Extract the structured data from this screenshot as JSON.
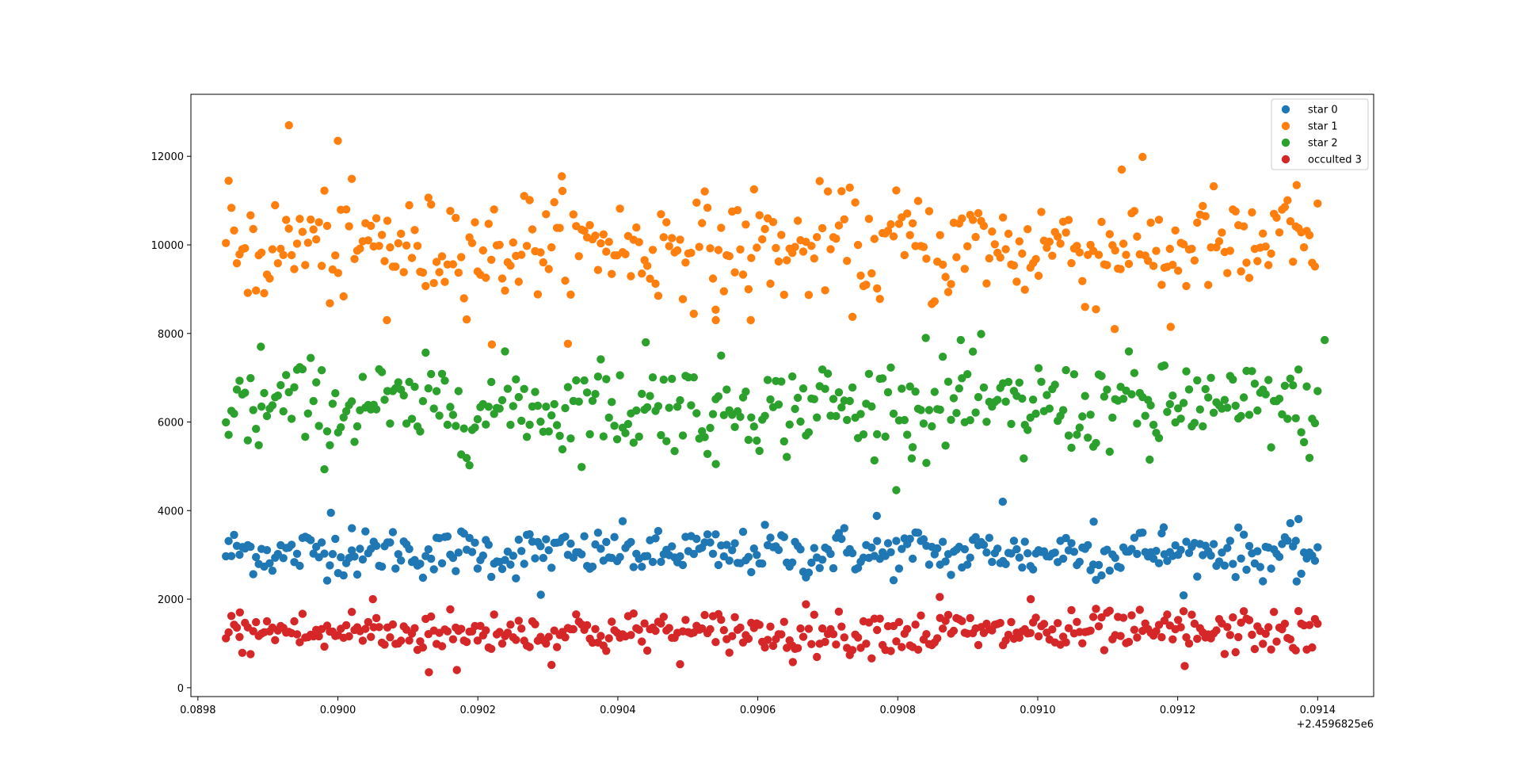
{
  "chart_data": {
    "type": "scatter",
    "x_range": [
      0.08984,
      0.0914
    ],
    "xlim": [
      0.08979,
      0.09148
    ],
    "ylim": [
      -200,
      13400
    ],
    "x_ticks": [
      0.0898,
      0.09,
      0.0902,
      0.0904,
      0.0906,
      0.0908,
      0.091,
      0.0912,
      0.0914
    ],
    "x_tick_labels": [
      "0.0898",
      "0.0900",
      "0.0902",
      "0.0904",
      "0.0906",
      "0.0908",
      "0.0910",
      "0.0912",
      "0.0914"
    ],
    "y_ticks": [
      0,
      2000,
      4000,
      6000,
      8000,
      10000,
      12000
    ],
    "y_tick_labels": [
      "0",
      "2000",
      "4000",
      "6000",
      "8000",
      "10000",
      "12000"
    ],
    "x_offset_label": "+2.4596825e6",
    "legend_position": "top-right",
    "n_points_per_series": 400,
    "series": [
      {
        "name": "star 0",
        "color": "#1f77b4",
        "mean": 3050,
        "spread": 260,
        "outliers": [
          [
            0.08999,
            3950
          ],
          [
            0.09002,
            3600
          ],
          [
            0.09029,
            2100
          ],
          [
            0.09077,
            3880
          ],
          [
            0.09095,
            4200
          ],
          [
            0.09108,
            3750
          ],
          [
            0.09137,
            2400
          ],
          [
            0.09118,
            3620
          ]
        ]
      },
      {
        "name": "star 1",
        "color": "#ff7f0e",
        "mean": 9950,
        "spread": 600,
        "outliers": [
          [
            0.08993,
            12700
          ],
          [
            0.09,
            12350
          ],
          [
            0.09007,
            8300
          ],
          [
            0.09022,
            7750
          ],
          [
            0.09032,
            11550
          ],
          [
            0.09054,
            8300
          ],
          [
            0.09059,
            8300
          ],
          [
            0.09112,
            11700
          ],
          [
            0.09111,
            8100
          ],
          [
            0.09119,
            8150
          ],
          [
            0.09137,
            11350
          ]
        ]
      },
      {
        "name": "star 2",
        "color": "#2ca02c",
        "mean": 6350,
        "spread": 500,
        "outliers": [
          [
            0.08989,
            7700
          ],
          [
            0.09044,
            7800
          ],
          [
            0.09054,
            5050
          ],
          [
            0.09084,
            7900
          ],
          [
            0.09089,
            7850
          ],
          [
            0.09082,
            5180
          ],
          [
            0.09098,
            5180
          ],
          [
            0.09141,
            7850
          ],
          [
            0.09116,
            5150
          ]
        ]
      },
      {
        "name": "occulted 3",
        "color": "#d62728",
        "mean": 1250,
        "spread": 240,
        "outliers": [
          [
            0.09005,
            2000
          ],
          [
            0.09013,
            350
          ],
          [
            0.09017,
            400
          ],
          [
            0.09065,
            580
          ],
          [
            0.09086,
            2050
          ],
          [
            0.09099,
            2000
          ],
          [
            0.09121,
            490
          ],
          [
            0.08986,
            1700
          ]
        ]
      }
    ]
  }
}
